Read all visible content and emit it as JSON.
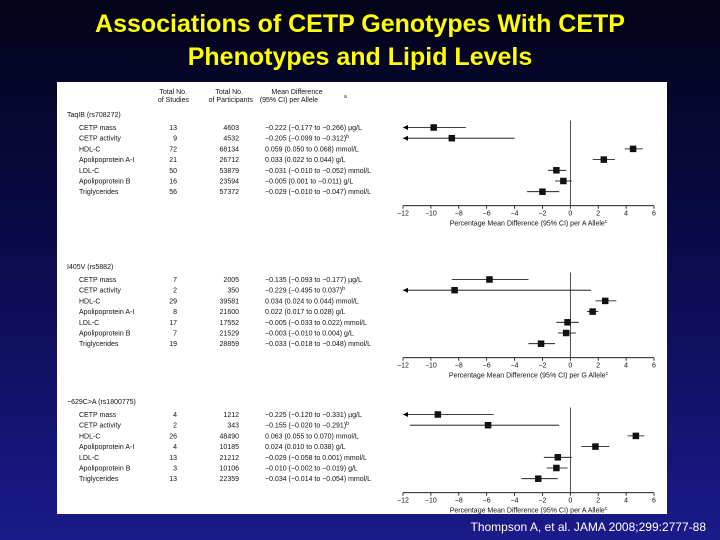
{
  "slide": {
    "title_line1": "Associations of CETP Genotypes With CETP",
    "title_line2": "Phenotypes and Lipid Levels",
    "citation": "Thompson A, et al. JAMA 2008;299:2777-88"
  },
  "table_headers": {
    "studies_1": "Total No.",
    "studies_2": "of Studies",
    "participants_1": "Total No.",
    "participants_2": "of Participants",
    "diff_1": "Mean Difference",
    "diff_2": "(95% CI) per Allele",
    "diff_sup": "a"
  },
  "chart_data": [
    {
      "type": "forest",
      "title": "TaqIB (rs708272)",
      "xlabel": "Percentage Mean Difference (95% CI) per A Allele",
      "xlabel_sup": "c",
      "xlim": [
        -12,
        6
      ],
      "xticks": [
        -12,
        -10,
        -8,
        -6,
        -4,
        -2,
        0,
        2,
        4,
        6
      ],
      "rows": [
        {
          "label": "CETP mass",
          "studies": "13",
          "participants": "4603",
          "diff_text": "−0.222 (−0.177 to −0.266) µg/L",
          "sup": "",
          "est": -9.8,
          "lo": -12.0,
          "hi": -7.5
        },
        {
          "label": "CETP activity",
          "studies": "9",
          "participants": "4532",
          "diff_text": "−0.205 (−0.099 to −0.312)",
          "sup": "b",
          "est": -8.5,
          "lo": -12.0,
          "hi": -4.0
        },
        {
          "label": "HDL-C",
          "studies": "72",
          "participants": "68134",
          "diff_text": "0.059 (0.050 to 0.068) mmol/L",
          "sup": "",
          "est": 4.5,
          "lo": 3.9,
          "hi": 5.2
        },
        {
          "label": "Apolipoprotein A-I",
          "studies": "21",
          "participants": "26712",
          "diff_text": "0.033 (0.022 to 0.044) g/L",
          "sup": "",
          "est": 2.4,
          "lo": 1.6,
          "hi": 3.2
        },
        {
          "label": "LDL-C",
          "studies": "50",
          "participants": "53879",
          "diff_text": "−0.031 (−0.010 to −0.052) mmol/L",
          "sup": "",
          "est": -1.0,
          "lo": -1.6,
          "hi": -0.3
        },
        {
          "label": "Apolipoprotein B",
          "studies": "16",
          "participants": "23594",
          "diff_text": "−0.005 (0.001 to −0.011) g/L",
          "sup": "",
          "est": -0.5,
          "lo": -1.1,
          "hi": 0.1
        },
        {
          "label": "Triglycerides",
          "studies": "56",
          "participants": "57372",
          "diff_text": "−0.029 (−0.010 to −0.047) mmol/L",
          "sup": "",
          "est": -2.0,
          "lo": -3.1,
          "hi": -0.8
        }
      ]
    },
    {
      "type": "forest",
      "title": "I405V (rs5882)",
      "xlabel": "Percentage Mean Difference (95% CI) per G Allele",
      "xlabel_sup": "c",
      "xlim": [
        -12,
        6
      ],
      "xticks": [
        -12,
        -10,
        -8,
        -6,
        -4,
        -2,
        0,
        2,
        4,
        6
      ],
      "rows": [
        {
          "label": "CETP mass",
          "studies": "7",
          "participants": "2005",
          "diff_text": "−0.135 (−0.093 to −0.177) µg/L",
          "sup": "",
          "est": -5.8,
          "lo": -8.5,
          "hi": -3.0
        },
        {
          "label": "CETP activity",
          "studies": "2",
          "participants": "350",
          "diff_text": "−0.229 (−0.495 to 0.037)",
          "sup": "b",
          "est": -8.3,
          "lo": -12.0,
          "hi": 1.5
        },
        {
          "label": "HDL-C",
          "studies": "29",
          "participants": "39581",
          "diff_text": "0.034 (0.024 to 0.044) mmol/L",
          "sup": "",
          "est": 2.5,
          "lo": 1.8,
          "hi": 3.3
        },
        {
          "label": "Apolipoprotein A-I",
          "studies": "8",
          "participants": "21600",
          "diff_text": "0.022 (0.017 to 0.028) g/L",
          "sup": "",
          "est": 1.6,
          "lo": 1.2,
          "hi": 2.0
        },
        {
          "label": "LDL-C",
          "studies": "17",
          "participants": "17552",
          "diff_text": "−0.005 (−0.033 to 0.022) mmol/L",
          "sup": "",
          "est": -0.2,
          "lo": -1.0,
          "hi": 0.6
        },
        {
          "label": "Apolipoprotein B",
          "studies": "7",
          "participants": "21529",
          "diff_text": "−0.003 (−0.010 to 0.004) g/L",
          "sup": "",
          "est": -0.3,
          "lo": -0.9,
          "hi": 0.4
        },
        {
          "label": "Triglycerides",
          "studies": "19",
          "participants": "28859",
          "diff_text": "−0.033 (−0.018 to −0.048) mmol/L",
          "sup": "",
          "est": -2.1,
          "lo": -3.0,
          "hi": -1.1
        }
      ]
    },
    {
      "type": "forest",
      "title": "−629C>A (rs1800775)",
      "xlabel": "Percentage Mean Difference (95% CI) per A Allele",
      "xlabel_sup": "c",
      "xlim": [
        -12,
        6
      ],
      "xticks": [
        -12,
        -10,
        -8,
        -6,
        -4,
        -2,
        0,
        2,
        4,
        6
      ],
      "rows": [
        {
          "label": "CETP mass",
          "studies": "4",
          "participants": "1212",
          "diff_text": "−0.225 (−0.120 to −0.331) µg/L",
          "sup": "",
          "est": -9.5,
          "lo": -12.0,
          "hi": -5.5
        },
        {
          "label": "CETP activity",
          "studies": "2",
          "participants": "343",
          "diff_text": "−0.155 (−0.020 to −0.291)",
          "sup": "b",
          "est": -5.9,
          "lo": -11.5,
          "hi": -0.8
        },
        {
          "label": "HDL-C",
          "studies": "26",
          "participants": "48490",
          "diff_text": "0.063 (0.055 to 0.070) mmol/L",
          "sup": "",
          "est": 4.7,
          "lo": 4.1,
          "hi": 5.3
        },
        {
          "label": "Apolipoprotein A-I",
          "studies": "4",
          "participants": "10185",
          "diff_text": "0.024 (0.010 to 0.038) g/L",
          "sup": "",
          "est": 1.8,
          "lo": 0.8,
          "hi": 2.8
        },
        {
          "label": "LDL-C",
          "studies": "13",
          "participants": "21212",
          "diff_text": "−0.029 (−0.058 to 0.001) mmol/L",
          "sup": "",
          "est": -0.9,
          "lo": -1.9,
          "hi": 0.1
        },
        {
          "label": "Apolipoprotein B",
          "studies": "3",
          "participants": "10106",
          "diff_text": "−0.010 (−0.002 to −0.019) g/L",
          "sup": "",
          "est": -1.0,
          "lo": -1.7,
          "hi": -0.2
        },
        {
          "label": "Triglycerides",
          "studies": "13",
          "participants": "22359",
          "diff_text": "−0.034 (−0.014 to −0.054) mmol/L",
          "sup": "",
          "est": -2.3,
          "lo": -3.5,
          "hi": -0.9
        }
      ]
    }
  ]
}
